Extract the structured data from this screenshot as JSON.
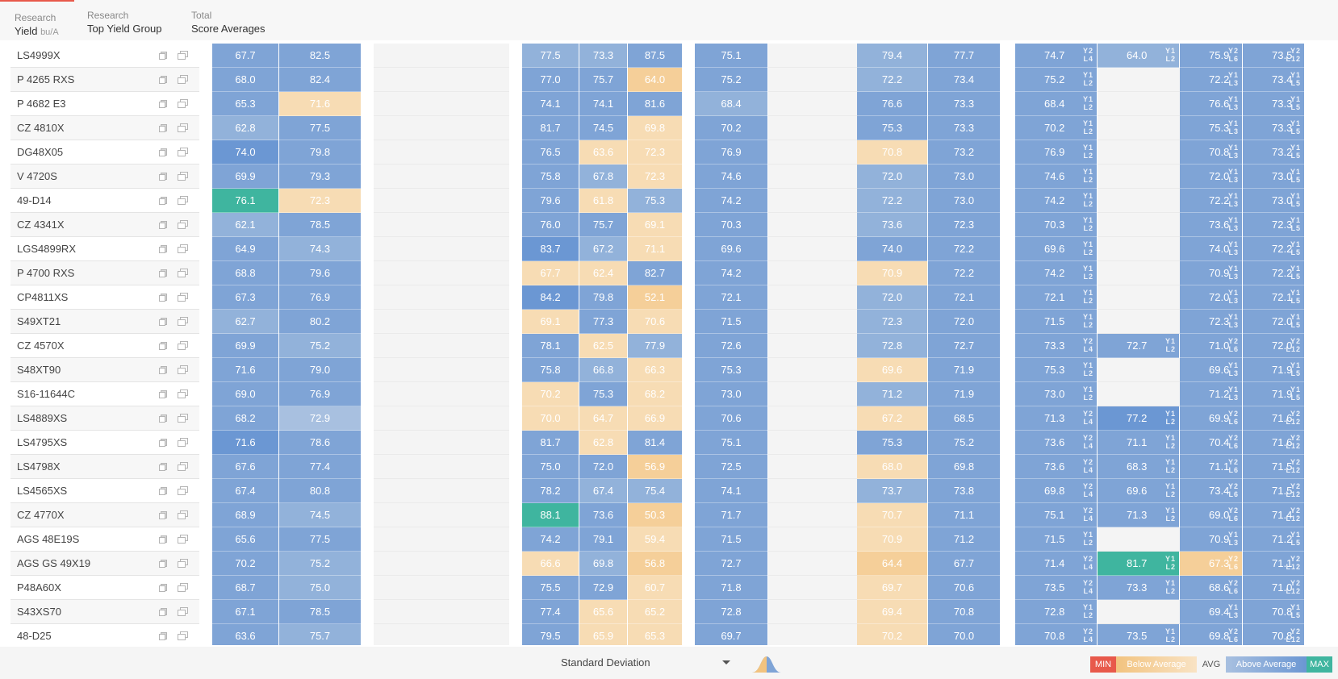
{
  "tabs": [
    {
      "line1": "Research",
      "line2": "Yield",
      "unit": "bu/A"
    },
    {
      "line1": "Research",
      "line2": "Top Yield Group"
    },
    {
      "line1": "Total",
      "line2": "Score Averages"
    }
  ],
  "rows": [
    {
      "name": "LS4999X",
      "c": [
        [
          "67.7",
          "b2"
        ],
        [
          "82.5",
          "b2"
        ],
        [
          "77.5",
          "b3"
        ],
        [
          "73.3",
          "b3"
        ],
        [
          "87.5",
          "b2"
        ],
        [
          "75.1",
          "b2"
        ],
        [
          "79.4",
          "b3"
        ],
        [
          "77.7",
          "b2"
        ],
        [
          "74.7",
          "b2",
          "Y2 L4"
        ],
        [
          "64.0",
          "b3",
          "Y1 L2"
        ],
        [
          "75.9",
          "b2",
          "Y2 L6"
        ],
        [
          "73.5",
          "b2",
          "Y2 L12"
        ]
      ]
    },
    {
      "name": "P 4265 RXS",
      "c": [
        [
          "68.0",
          "b2"
        ],
        [
          "82.4",
          "b2"
        ],
        [
          "77.0",
          "b2"
        ],
        [
          "75.7",
          "b2"
        ],
        [
          "64.0",
          "o2"
        ],
        [
          "75.2",
          "b2"
        ],
        [
          "72.2",
          "b3"
        ],
        [
          "73.4",
          "b2"
        ],
        [
          "75.2",
          "b2",
          "Y1 L2"
        ],
        [
          "",
          ""
        ],
        [
          "72.2",
          "b2",
          "Y1 L3"
        ],
        [
          "73.4",
          "b2",
          "Y1 L5"
        ]
      ]
    },
    {
      "name": "P 4682 E3",
      "c": [
        [
          "65.3",
          "b2"
        ],
        [
          "71.6",
          "o1"
        ],
        [
          "74.1",
          "b2"
        ],
        [
          "74.1",
          "b2"
        ],
        [
          "81.6",
          "b2"
        ],
        [
          "68.4",
          "b3"
        ],
        [
          "76.6",
          "b2"
        ],
        [
          "73.3",
          "b2"
        ],
        [
          "68.4",
          "b2",
          "Y1 L2"
        ],
        [
          "",
          ""
        ],
        [
          "76.6",
          "b2",
          "Y1 L3"
        ],
        [
          "73.3",
          "b2",
          "Y1 L5"
        ]
      ]
    },
    {
      "name": "CZ 4810X",
      "c": [
        [
          "62.8",
          "b3"
        ],
        [
          "77.5",
          "b2"
        ],
        [
          "81.7",
          "b2"
        ],
        [
          "74.5",
          "b2"
        ],
        [
          "69.8",
          "o1"
        ],
        [
          "70.2",
          "b2"
        ],
        [
          "75.3",
          "b2"
        ],
        [
          "73.3",
          "b2"
        ],
        [
          "70.2",
          "b2",
          "Y1 L2"
        ],
        [
          "",
          ""
        ],
        [
          "75.3",
          "b2",
          "Y1 L3"
        ],
        [
          "73.3",
          "b2",
          "Y1 L5"
        ]
      ]
    },
    {
      "name": "DG48X05",
      "c": [
        [
          "74.0",
          "b1"
        ],
        [
          "79.8",
          "b2"
        ],
        [
          "76.5",
          "b2"
        ],
        [
          "63.6",
          "o1"
        ],
        [
          "72.3",
          "o1"
        ],
        [
          "76.9",
          "b2"
        ],
        [
          "70.8",
          "o1"
        ],
        [
          "73.2",
          "b2"
        ],
        [
          "76.9",
          "b2",
          "Y1 L2"
        ],
        [
          "",
          ""
        ],
        [
          "70.8",
          "b2",
          "Y1 L3"
        ],
        [
          "73.2",
          "b2",
          "Y1 L5"
        ]
      ]
    },
    {
      "name": "V 4720S",
      "c": [
        [
          "69.9",
          "b2"
        ],
        [
          "79.3",
          "b2"
        ],
        [
          "75.8",
          "b2"
        ],
        [
          "67.8",
          "b3"
        ],
        [
          "72.3",
          "o1"
        ],
        [
          "74.6",
          "b2"
        ],
        [
          "72.0",
          "b3"
        ],
        [
          "73.0",
          "b2"
        ],
        [
          "74.6",
          "b2",
          "Y1 L2"
        ],
        [
          "",
          ""
        ],
        [
          "72.0",
          "b2",
          "Y1 L3"
        ],
        [
          "73.0",
          "b2",
          "Y1 L5"
        ]
      ]
    },
    {
      "name": "49-D14",
      "c": [
        [
          "76.1",
          "tq"
        ],
        [
          "72.3",
          "o1"
        ],
        [
          "79.6",
          "b2"
        ],
        [
          "61.8",
          "o1"
        ],
        [
          "75.3",
          "b3"
        ],
        [
          "74.2",
          "b2"
        ],
        [
          "72.2",
          "b3"
        ],
        [
          "73.0",
          "b2"
        ],
        [
          "74.2",
          "b2",
          "Y1 L2"
        ],
        [
          "",
          ""
        ],
        [
          "72.2",
          "b2",
          "Y1 L3"
        ],
        [
          "73.0",
          "b2",
          "Y1 L5"
        ]
      ]
    },
    {
      "name": "CZ 4341X",
      "c": [
        [
          "62.1",
          "b3"
        ],
        [
          "78.5",
          "b2"
        ],
        [
          "76.0",
          "b2"
        ],
        [
          "75.7",
          "b2"
        ],
        [
          "69.1",
          "o1"
        ],
        [
          "70.3",
          "b2"
        ],
        [
          "73.6",
          "b3"
        ],
        [
          "72.3",
          "b2"
        ],
        [
          "70.3",
          "b2",
          "Y1 L2"
        ],
        [
          "",
          ""
        ],
        [
          "73.6",
          "b2",
          "Y1 L3"
        ],
        [
          "72.3",
          "b2",
          "Y1 L5"
        ]
      ]
    },
    {
      "name": "LGS4899RX",
      "c": [
        [
          "64.9",
          "b2"
        ],
        [
          "74.3",
          "b3"
        ],
        [
          "83.7",
          "b1"
        ],
        [
          "67.2",
          "b3"
        ],
        [
          "71.1",
          "o1"
        ],
        [
          "69.6",
          "b2"
        ],
        [
          "74.0",
          "b2"
        ],
        [
          "72.2",
          "b2"
        ],
        [
          "69.6",
          "b2",
          "Y1 L2"
        ],
        [
          "",
          ""
        ],
        [
          "74.0",
          "b2",
          "Y1 L3"
        ],
        [
          "72.2",
          "b2",
          "Y1 L5"
        ]
      ]
    },
    {
      "name": "P 4700 RXS",
      "c": [
        [
          "68.8",
          "b2"
        ],
        [
          "79.6",
          "b2"
        ],
        [
          "67.7",
          "o1"
        ],
        [
          "62.4",
          "o1"
        ],
        [
          "82.7",
          "b2"
        ],
        [
          "74.2",
          "b2"
        ],
        [
          "70.9",
          "o1"
        ],
        [
          "72.2",
          "b2"
        ],
        [
          "74.2",
          "b2",
          "Y1 L2"
        ],
        [
          "",
          ""
        ],
        [
          "70.9",
          "b2",
          "Y1 L3"
        ],
        [
          "72.2",
          "b2",
          "Y1 L5"
        ]
      ]
    },
    {
      "name": "CP4811XS",
      "c": [
        [
          "67.3",
          "b2"
        ],
        [
          "76.9",
          "b2"
        ],
        [
          "84.2",
          "b1"
        ],
        [
          "79.8",
          "b2"
        ],
        [
          "52.1",
          "o2"
        ],
        [
          "72.1",
          "b2"
        ],
        [
          "72.0",
          "b3"
        ],
        [
          "72.1",
          "b2"
        ],
        [
          "72.1",
          "b2",
          "Y1 L2"
        ],
        [
          "",
          ""
        ],
        [
          "72.0",
          "b2",
          "Y1 L3"
        ],
        [
          "72.1",
          "b2",
          "Y1 L5"
        ]
      ]
    },
    {
      "name": "S49XT21",
      "c": [
        [
          "62.7",
          "b3"
        ],
        [
          "80.2",
          "b2"
        ],
        [
          "69.1",
          "o1"
        ],
        [
          "77.3",
          "b2"
        ],
        [
          "70.6",
          "o1"
        ],
        [
          "71.5",
          "b2"
        ],
        [
          "72.3",
          "b3"
        ],
        [
          "72.0",
          "b2"
        ],
        [
          "71.5",
          "b2",
          "Y1 L2"
        ],
        [
          "",
          ""
        ],
        [
          "72.3",
          "b2",
          "Y1 L3"
        ],
        [
          "72.0",
          "b2",
          "Y1 L5"
        ]
      ]
    },
    {
      "name": "CZ 4570X",
      "c": [
        [
          "69.9",
          "b2"
        ],
        [
          "75.2",
          "b3"
        ],
        [
          "78.1",
          "b2"
        ],
        [
          "62.5",
          "o1"
        ],
        [
          "77.9",
          "b3"
        ],
        [
          "72.6",
          "b2"
        ],
        [
          "72.8",
          "b3"
        ],
        [
          "72.7",
          "b2"
        ],
        [
          "73.3",
          "b2",
          "Y2 L4"
        ],
        [
          "72.7",
          "b2",
          "Y1 L2"
        ],
        [
          "71.0",
          "b2",
          "Y2 L6"
        ],
        [
          "72.0",
          "b2",
          "Y2 L12"
        ]
      ]
    },
    {
      "name": "S48XT90",
      "c": [
        [
          "71.6",
          "b2"
        ],
        [
          "79.0",
          "b2"
        ],
        [
          "75.8",
          "b2"
        ],
        [
          "66.8",
          "b3"
        ],
        [
          "66.3",
          "o1"
        ],
        [
          "75.3",
          "b2"
        ],
        [
          "69.6",
          "o1"
        ],
        [
          "71.9",
          "b2"
        ],
        [
          "75.3",
          "b2",
          "Y1 L2"
        ],
        [
          "",
          ""
        ],
        [
          "69.6",
          "b2",
          "Y1 L3"
        ],
        [
          "71.9",
          "b2",
          "Y1 L5"
        ]
      ]
    },
    {
      "name": "S16-11644C",
      "c": [
        [
          "69.0",
          "b2"
        ],
        [
          "76.9",
          "b2"
        ],
        [
          "70.2",
          "o1"
        ],
        [
          "75.3",
          "b2"
        ],
        [
          "68.2",
          "o1"
        ],
        [
          "73.0",
          "b2"
        ],
        [
          "71.2",
          "b3"
        ],
        [
          "71.9",
          "b2"
        ],
        [
          "73.0",
          "b2",
          "Y1 L2"
        ],
        [
          "",
          ""
        ],
        [
          "71.2",
          "b2",
          "Y1 L3"
        ],
        [
          "71.9",
          "b2",
          "Y1 L5"
        ]
      ]
    },
    {
      "name": "LS4889XS",
      "c": [
        [
          "68.2",
          "b2"
        ],
        [
          "72.9",
          "b4"
        ],
        [
          "70.0",
          "o1"
        ],
        [
          "64.7",
          "o1"
        ],
        [
          "66.9",
          "o1"
        ],
        [
          "70.6",
          "b2"
        ],
        [
          "67.2",
          "o1"
        ],
        [
          "68.5",
          "b2"
        ],
        [
          "71.3",
          "b2",
          "Y2 L4"
        ],
        [
          "77.2",
          "b1",
          "Y1 L2"
        ],
        [
          "69.9",
          "b2",
          "Y2 L6"
        ],
        [
          "71.6",
          "b2",
          "Y2 L12"
        ]
      ]
    },
    {
      "name": "LS4795XS",
      "c": [
        [
          "71.6",
          "b1"
        ],
        [
          "78.6",
          "b2"
        ],
        [
          "81.7",
          "b2"
        ],
        [
          "62.8",
          "o1"
        ],
        [
          "81.4",
          "b2"
        ],
        [
          "75.1",
          "b2"
        ],
        [
          "75.3",
          "b2"
        ],
        [
          "75.2",
          "b2"
        ],
        [
          "73.6",
          "b2",
          "Y2 L4"
        ],
        [
          "71.1",
          "b2",
          "Y1 L2"
        ],
        [
          "70.4",
          "b2",
          "Y2 L6"
        ],
        [
          "71.6",
          "b2",
          "Y2 L12"
        ]
      ]
    },
    {
      "name": "LS4798X",
      "c": [
        [
          "67.6",
          "b2"
        ],
        [
          "77.4",
          "b2"
        ],
        [
          "75.0",
          "b2"
        ],
        [
          "72.0",
          "b2"
        ],
        [
          "56.9",
          "o2"
        ],
        [
          "72.5",
          "b2"
        ],
        [
          "68.0",
          "o1"
        ],
        [
          "69.8",
          "b2"
        ],
        [
          "73.6",
          "b2",
          "Y2 L4"
        ],
        [
          "68.3",
          "b2",
          "Y1 L2"
        ],
        [
          "71.1",
          "b2",
          "Y2 L6"
        ],
        [
          "71.5",
          "b2",
          "Y2 L12"
        ]
      ]
    },
    {
      "name": "LS4565XS",
      "c": [
        [
          "67.4",
          "b2"
        ],
        [
          "80.8",
          "b2"
        ],
        [
          "78.2",
          "b2"
        ],
        [
          "67.4",
          "b3"
        ],
        [
          "75.4",
          "b3"
        ],
        [
          "74.1",
          "b2"
        ],
        [
          "73.7",
          "b3"
        ],
        [
          "73.8",
          "b2"
        ],
        [
          "69.8",
          "b2",
          "Y2 L4"
        ],
        [
          "69.6",
          "b2",
          "Y1 L2"
        ],
        [
          "73.4",
          "b2",
          "Y2 L6"
        ],
        [
          "71.5",
          "b2",
          "Y2 L12"
        ]
      ]
    },
    {
      "name": "CZ 4770X",
      "c": [
        [
          "68.9",
          "b2"
        ],
        [
          "74.5",
          "b3"
        ],
        [
          "88.1",
          "tq"
        ],
        [
          "73.6",
          "b2"
        ],
        [
          "50.3",
          "o2"
        ],
        [
          "71.7",
          "b2"
        ],
        [
          "70.7",
          "o1"
        ],
        [
          "71.1",
          "b2"
        ],
        [
          "75.1",
          "b2",
          "Y2 L4"
        ],
        [
          "71.3",
          "b2",
          "Y1 L2"
        ],
        [
          "69.0",
          "b2",
          "Y2 L6"
        ],
        [
          "71.4",
          "b2",
          "Y2 L12"
        ]
      ]
    },
    {
      "name": "AGS 48E19S",
      "c": [
        [
          "65.6",
          "b2"
        ],
        [
          "77.5",
          "b2"
        ],
        [
          "74.2",
          "b2"
        ],
        [
          "79.1",
          "b2"
        ],
        [
          "59.4",
          "o1"
        ],
        [
          "71.5",
          "b2"
        ],
        [
          "70.9",
          "o1"
        ],
        [
          "71.2",
          "b2"
        ],
        [
          "71.5",
          "b2",
          "Y1 L2"
        ],
        [
          "",
          ""
        ],
        [
          "70.9",
          "b2",
          "Y1 L3"
        ],
        [
          "71.2",
          "b2",
          "Y1 L5"
        ]
      ]
    },
    {
      "name": "AGS GS 49X19",
      "c": [
        [
          "70.2",
          "b2"
        ],
        [
          "75.2",
          "b3"
        ],
        [
          "66.6",
          "o1"
        ],
        [
          "69.8",
          "b3"
        ],
        [
          "56.8",
          "o2"
        ],
        [
          "72.7",
          "b2"
        ],
        [
          "64.4",
          "o2"
        ],
        [
          "67.7",
          "b2"
        ],
        [
          "71.4",
          "b2",
          "Y2 L4"
        ],
        [
          "81.7",
          "tq",
          "Y1 L2"
        ],
        [
          "67.3",
          "o2",
          "Y2 L6"
        ],
        [
          "71.1",
          "b2",
          "Y2 L12"
        ]
      ]
    },
    {
      "name": "P48A60X",
      "c": [
        [
          "68.7",
          "b2"
        ],
        [
          "75.0",
          "b3"
        ],
        [
          "75.5",
          "b2"
        ],
        [
          "72.9",
          "b2"
        ],
        [
          "60.7",
          "o1"
        ],
        [
          "71.8",
          "b2"
        ],
        [
          "69.7",
          "o1"
        ],
        [
          "70.6",
          "b2"
        ],
        [
          "73.5",
          "b2",
          "Y2 L4"
        ],
        [
          "73.3",
          "b2",
          "Y1 L2"
        ],
        [
          "68.6",
          "b2",
          "Y2 L6"
        ],
        [
          "71.0",
          "b2",
          "Y2 L12"
        ]
      ]
    },
    {
      "name": "S43XS70",
      "c": [
        [
          "67.1",
          "b2"
        ],
        [
          "78.5",
          "b2"
        ],
        [
          "77.4",
          "b2"
        ],
        [
          "65.6",
          "o1"
        ],
        [
          "65.2",
          "o1"
        ],
        [
          "72.8",
          "b2"
        ],
        [
          "69.4",
          "o1"
        ],
        [
          "70.8",
          "b2"
        ],
        [
          "72.8",
          "b2",
          "Y1 L2"
        ],
        [
          "",
          ""
        ],
        [
          "69.4",
          "b2",
          "Y1 L3"
        ],
        [
          "70.8",
          "b2",
          "Y1 L5"
        ]
      ]
    },
    {
      "name": "48-D25",
      "c": [
        [
          "63.6",
          "b2"
        ],
        [
          "75.7",
          "b3"
        ],
        [
          "79.5",
          "b2"
        ],
        [
          "65.9",
          "o1"
        ],
        [
          "65.3",
          "o1"
        ],
        [
          "69.7",
          "b2"
        ],
        [
          "70.2",
          "o1"
        ],
        [
          "70.0",
          "b2"
        ],
        [
          "70.8",
          "b2",
          "Y2 L4"
        ],
        [
          "73.5",
          "b2",
          "Y1 L2"
        ],
        [
          "69.8",
          "b2",
          "Y2 L6"
        ],
        [
          "70.8",
          "b2",
          "Y2 L12"
        ]
      ]
    }
  ],
  "footer": {
    "select_value": "Standard Deviation",
    "legend": {
      "min": "MIN",
      "below": "Below Average",
      "avg": "AVG",
      "above": "Above Average",
      "max": "MAX"
    },
    "colors": {
      "min": "#e8594b",
      "below": "#f5cf99",
      "above": "#7fa4d6",
      "max": "#3fb59f"
    }
  }
}
